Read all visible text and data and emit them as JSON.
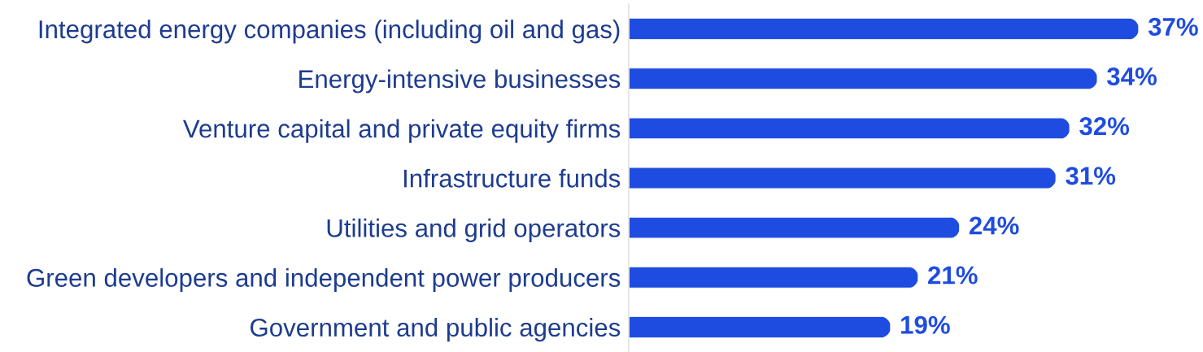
{
  "chart_data": {
    "type": "bar",
    "orientation": "horizontal",
    "tick_labels": "y",
    "color": "#1f4ce0",
    "categories": [
      "Integrated energy companies (including oil and gas)",
      "Energy-intensive businesses",
      "Venture capital and private equity firms",
      "Infrastructure funds",
      "Utilities and grid operators",
      "Green developers and independent power producers",
      "Government and public agencies"
    ],
    "values": [
      37,
      34,
      32,
      31,
      24,
      21,
      19
    ],
    "value_labels": [
      "37%",
      "34%",
      "32%",
      "31%",
      "24%",
      "21%",
      "19%"
    ]
  }
}
